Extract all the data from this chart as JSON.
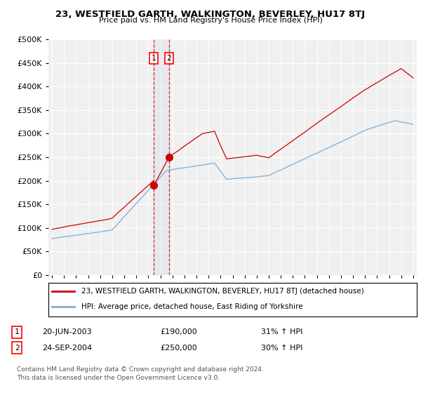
{
  "title": "23, WESTFIELD GARTH, WALKINGTON, BEVERLEY, HU17 8TJ",
  "subtitle": "Price paid vs. HM Land Registry's House Price Index (HPI)",
  "red_label": "23, WESTFIELD GARTH, WALKINGTON, BEVERLEY, HU17 8TJ (detached house)",
  "blue_label": "HPI: Average price, detached house, East Riding of Yorkshire",
  "sale1_date": "20-JUN-2003",
  "sale1_price": 190000,
  "sale1_hpi": "31% ↑ HPI",
  "sale2_date": "24-SEP-2004",
  "sale2_price": 250000,
  "sale2_hpi": "30% ↑ HPI",
  "footer": "Contains HM Land Registry data © Crown copyright and database right 2024.\nThis data is licensed under the Open Government Licence v3.0.",
  "ylim": [
    0,
    500000
  ],
  "yticks": [
    0,
    50000,
    100000,
    150000,
    200000,
    250000,
    300000,
    350000,
    400000,
    450000,
    500000
  ],
  "background_color": "#ffffff",
  "plot_background": "#f0f0f0",
  "red_color": "#cc0000",
  "blue_color": "#7bafd4",
  "shade_color": "#d0d8e8",
  "sale1_x": 2003.46,
  "sale2_x": 2004.72,
  "xmin": 1994.7,
  "xmax": 2025.3
}
